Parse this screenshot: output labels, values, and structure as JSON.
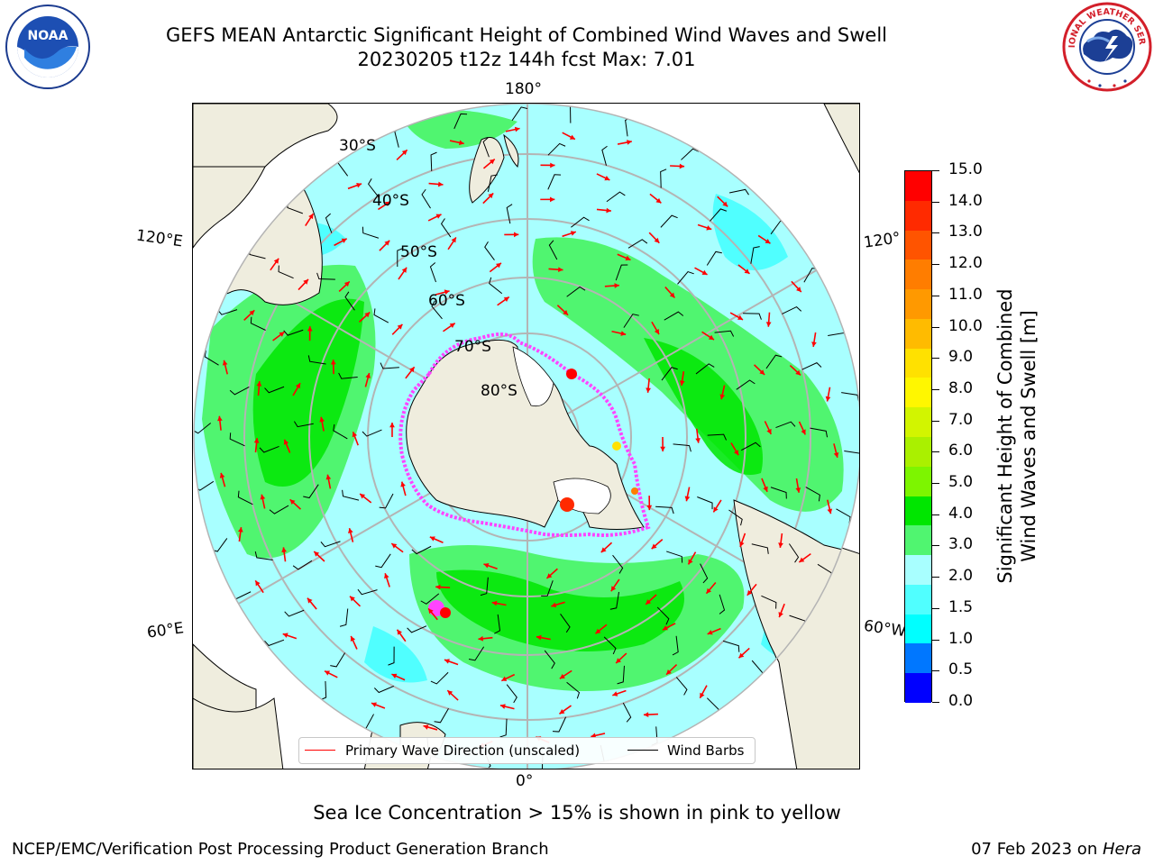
{
  "header": {
    "title_line1": "GEFS MEAN Antarctic Significant Height of Combined Wind Waves and Swell",
    "title_line2": "20230205 t12z 144h fcst   Max: 7.01"
  },
  "logos": {
    "left": "NOAA",
    "right": "NATIONAL WEATHER SERVICE"
  },
  "map": {
    "projection": "south-polar-stereographic",
    "land_color": "#efedde",
    "lon_labels": {
      "top": "180°",
      "bottom": "0°",
      "upper_left": "120°E",
      "upper_right": "120°",
      "lower_left": "60°E",
      "lower_right": "60°W"
    },
    "lat_labels": [
      "30°S",
      "40°S",
      "50°S",
      "60°S",
      "70°S",
      "80°S"
    ],
    "legend": {
      "wave_label": "Primary Wave Direction (unscaled)",
      "wave_color": "#ff0000",
      "barb_label": "Wind Barbs",
      "barb_color": "#000000"
    }
  },
  "colorbar": {
    "label_line1": "Significant Height of Combined",
    "label_line2": "Wind Waves and Swell [m]",
    "tick_labels": [
      "15.0",
      "14.0",
      "13.0",
      "12.0",
      "11.0",
      "10.0",
      "9.0",
      "8.0",
      "7.0",
      "6.0",
      "5.0",
      "4.0",
      "3.0",
      "2.0",
      "1.5",
      "1.0",
      "0.5",
      "0.0"
    ],
    "colors_top_to_bottom": [
      "#ff0000",
      "#ff2a00",
      "#ff5400",
      "#ff7d00",
      "#ff9900",
      "#ffbb00",
      "#ffe100",
      "#fff700",
      "#d2f500",
      "#aaf000",
      "#7df500",
      "#00e600",
      "#50f570",
      "#a8ffff",
      "#50ffff",
      "#00ffff",
      "#0077ff",
      "#0000ff"
    ]
  },
  "caption": "Sea Ice Concentration > 15% is shown in pink to yellow",
  "footer": {
    "left": "NCEP/EMC/Verification Post Processing Product Generation Branch",
    "right_date": "07 Feb 2023 on ",
    "right_host": "Hera"
  }
}
